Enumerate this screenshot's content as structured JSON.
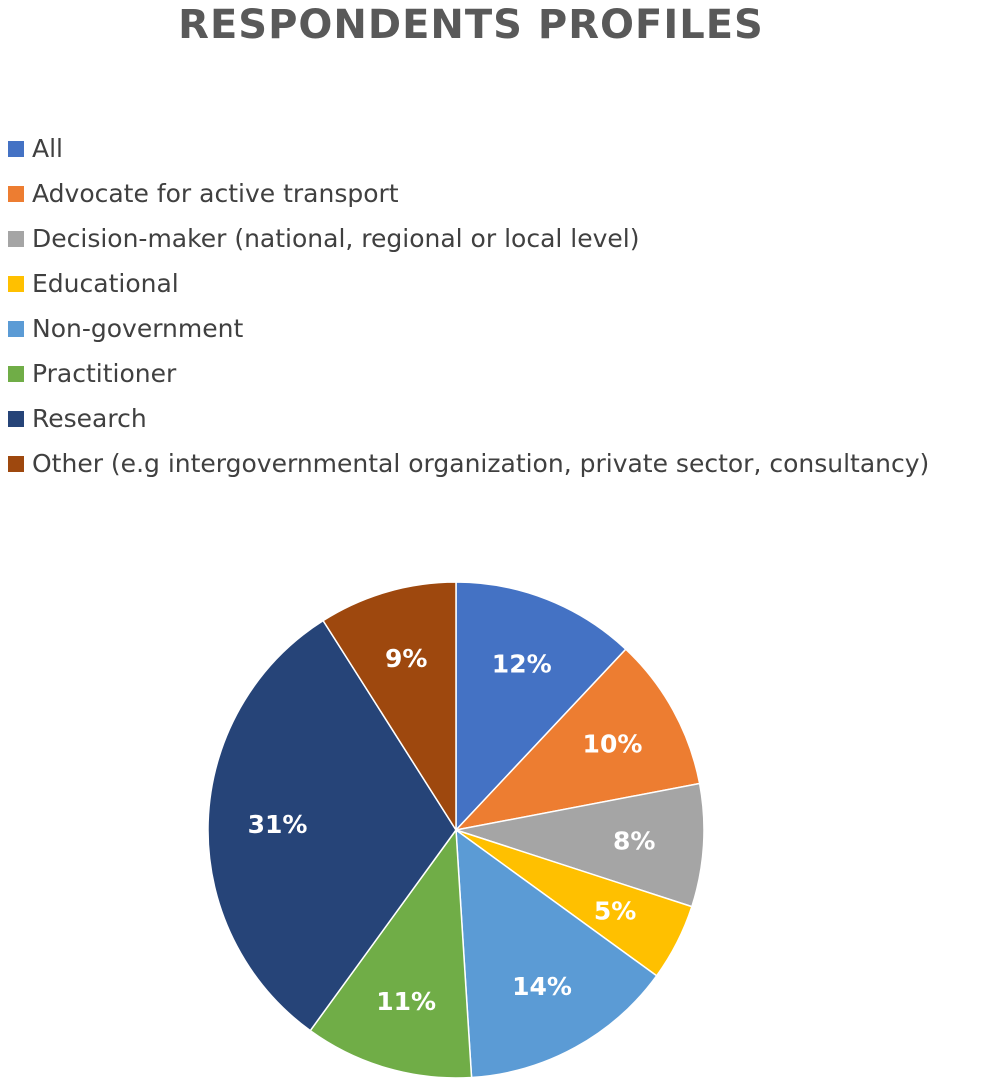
{
  "chart_data": {
    "type": "pie",
    "title": "RESPONDENTS PROFILES",
    "legend_position": "top-left",
    "categories": [
      "All",
      "Advocate for active transport",
      "Decision-maker (national, regional or local level)",
      "Educational",
      "Non-government",
      "Practitioner",
      "Research",
      "Other (e.g intergovernmental organization, private sector, consultancy)"
    ],
    "values": [
      12,
      10,
      8,
      5,
      14,
      11,
      31,
      9
    ],
    "data_labels": [
      "12%",
      "10%",
      "8%",
      "5%",
      "14%",
      "11%",
      "31%",
      "9%"
    ],
    "colors": [
      "#4472C4",
      "#ED7D31",
      "#A5A5A5",
      "#FFC000",
      "#5B9BD5",
      "#70AD47",
      "#264478",
      "#9E480E"
    ]
  }
}
